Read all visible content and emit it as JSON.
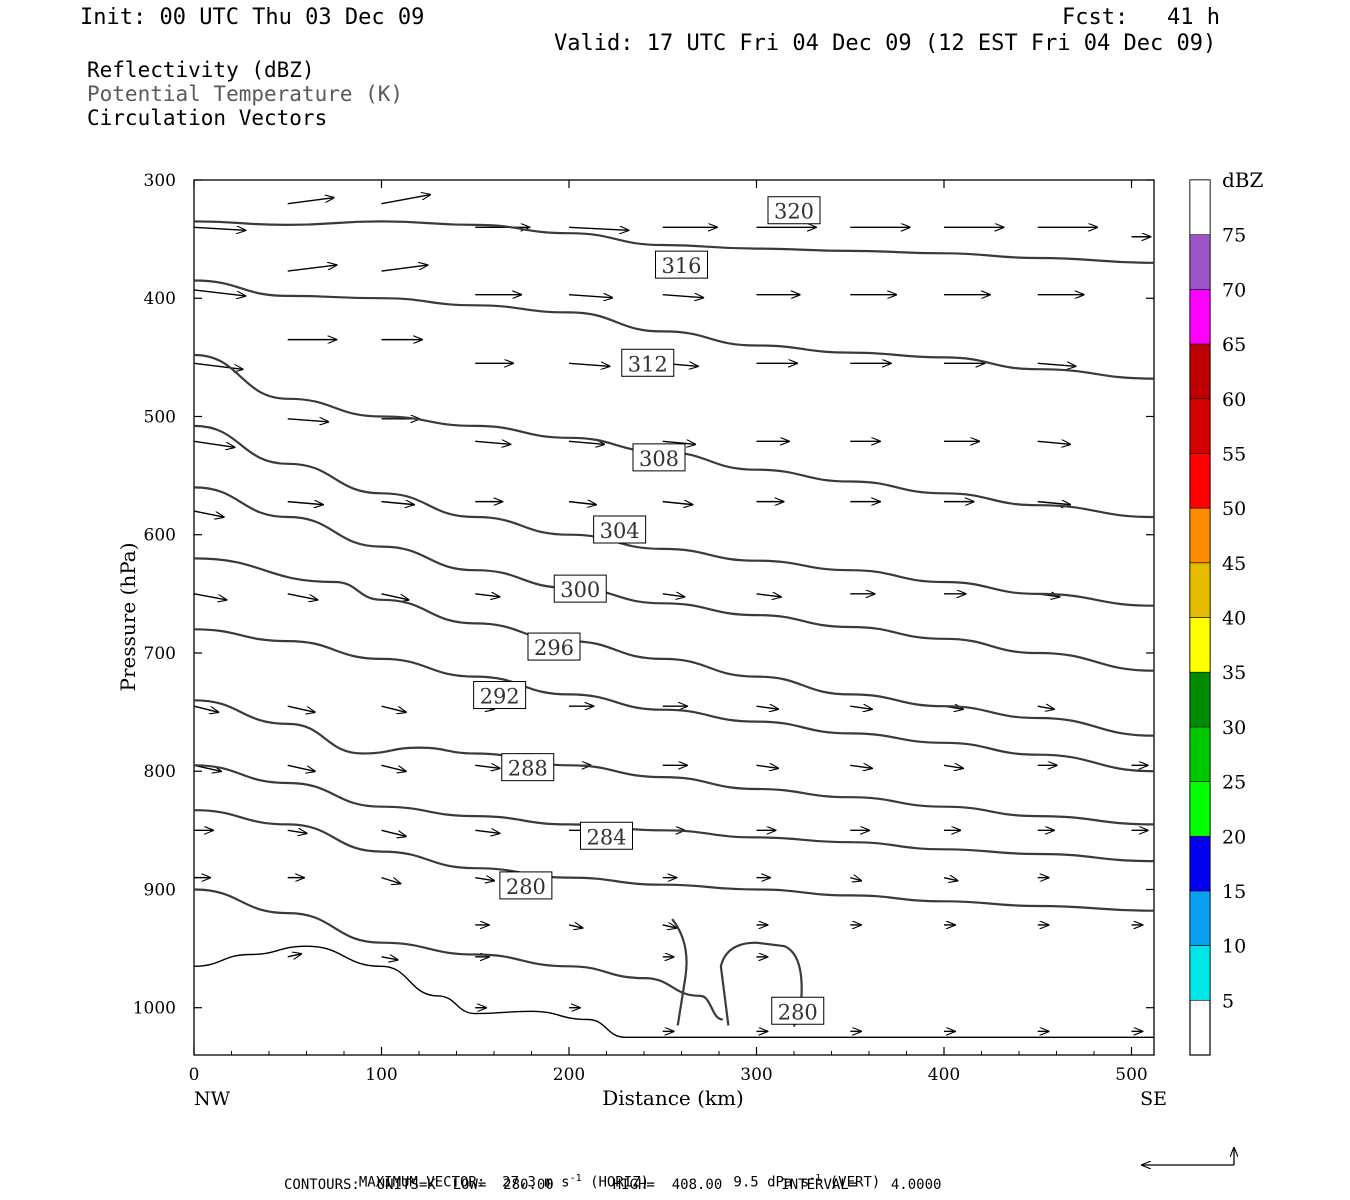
{
  "header": {
    "init": "Init: 00 UTC Thu 03 Dec 09",
    "fcst_label": "Fcst:",
    "fcst_value": "41 h",
    "valid": "Valid: 17 UTC Fri 04 Dec 09 (12 EST Fri 04 Dec 09)"
  },
  "legend": {
    "reflectivity": "Reflectivity (dBZ)",
    "theta": "Potential Temperature (K)",
    "vectors": "Circulation Vectors"
  },
  "colors": {
    "theta": "#3a3a3a",
    "ref_line": "#000000",
    "vector": "#000000"
  },
  "chart_data": {
    "type": "cross-section",
    "xlabel": "Distance (km)",
    "ylabel": "Pressure (hPa)",
    "xlim": [
      0,
      512
    ],
    "ylim": [
      1040,
      300
    ],
    "x_ticks": [
      0,
      100,
      200,
      300,
      400,
      500
    ],
    "y_ticks": [
      300,
      400,
      500,
      600,
      700,
      800,
      900,
      1000
    ],
    "x_end_labels": {
      "left": "NW",
      "right": "SE"
    },
    "theta_contours": [
      {
        "value": 320,
        "label_at": [
          320,
          326
        ],
        "points": [
          [
            0,
            335
          ],
          [
            50,
            338
          ],
          [
            100,
            335
          ],
          [
            150,
            338
          ],
          [
            200,
            345
          ],
          [
            250,
            355
          ],
          [
            300,
            358
          ],
          [
            350,
            360
          ],
          [
            400,
            362
          ],
          [
            450,
            366
          ],
          [
            512,
            370
          ]
        ]
      },
      {
        "value": 316,
        "label_at": [
          260,
          372
        ],
        "points": [
          [
            0,
            385
          ],
          [
            50,
            398
          ],
          [
            100,
            400
          ],
          [
            150,
            406
          ],
          [
            200,
            412
          ],
          [
            250,
            428
          ],
          [
            300,
            440
          ],
          [
            350,
            446
          ],
          [
            400,
            450
          ],
          [
            450,
            460
          ],
          [
            512,
            468
          ]
        ]
      },
      {
        "value": 312,
        "label_at": [
          242,
          455
        ],
        "points": [
          [
            0,
            448
          ],
          [
            50,
            485
          ],
          [
            100,
            500
          ],
          [
            150,
            508
          ],
          [
            200,
            518
          ],
          [
            250,
            530
          ],
          [
            300,
            545
          ],
          [
            350,
            555
          ],
          [
            400,
            565
          ],
          [
            450,
            575
          ],
          [
            512,
            585
          ]
        ]
      },
      {
        "value": 308,
        "label_at": [
          248,
          535
        ],
        "points": [
          [
            0,
            508
          ],
          [
            50,
            540
          ],
          [
            100,
            565
          ],
          [
            150,
            585
          ],
          [
            200,
            600
          ],
          [
            250,
            612
          ],
          [
            300,
            622
          ],
          [
            350,
            630
          ],
          [
            400,
            640
          ],
          [
            450,
            650
          ],
          [
            512,
            660
          ]
        ]
      },
      {
        "value": 304,
        "label_at": [
          227,
          596
        ],
        "points": [
          [
            0,
            560
          ],
          [
            50,
            585
          ],
          [
            100,
            610
          ],
          [
            150,
            630
          ],
          [
            200,
            645
          ],
          [
            250,
            658
          ],
          [
            300,
            668
          ],
          [
            350,
            678
          ],
          [
            400,
            688
          ],
          [
            450,
            700
          ],
          [
            512,
            715
          ]
        ]
      },
      {
        "value": 300,
        "label_at": [
          206,
          646
        ],
        "points": [
          [
            0,
            620
          ],
          [
            75,
            640
          ],
          [
            100,
            655
          ],
          [
            150,
            675
          ],
          [
            200,
            690
          ],
          [
            250,
            705
          ],
          [
            300,
            720
          ],
          [
            350,
            735
          ],
          [
            400,
            745
          ],
          [
            450,
            755
          ],
          [
            512,
            770
          ]
        ]
      },
      {
        "value": 296,
        "label_at": [
          192,
          695
        ],
        "points": [
          [
            0,
            680
          ],
          [
            50,
            690
          ],
          [
            100,
            705
          ],
          [
            150,
            720
          ],
          [
            200,
            735
          ],
          [
            250,
            748
          ],
          [
            300,
            758
          ],
          [
            350,
            768
          ],
          [
            400,
            776
          ],
          [
            450,
            786
          ],
          [
            512,
            800
          ]
        ]
      },
      {
        "value": 292,
        "label_at": [
          163,
          736
        ],
        "points": [
          [
            0,
            740
          ],
          [
            50,
            760
          ],
          [
            90,
            785
          ],
          [
            120,
            780
          ],
          [
            150,
            785
          ],
          [
            200,
            795
          ],
          [
            250,
            805
          ],
          [
            300,
            815
          ],
          [
            350,
            822
          ],
          [
            400,
            830
          ],
          [
            450,
            838
          ],
          [
            512,
            845
          ]
        ]
      },
      {
        "value": 288,
        "label_at": [
          178,
          797
        ],
        "points": [
          [
            0,
            795
          ],
          [
            50,
            810
          ],
          [
            100,
            830
          ],
          [
            150,
            838
          ],
          [
            200,
            845
          ],
          [
            250,
            850
          ],
          [
            300,
            856
          ],
          [
            350,
            860
          ],
          [
            400,
            866
          ],
          [
            450,
            870
          ],
          [
            512,
            876
          ]
        ]
      },
      {
        "value": 284,
        "label_at": [
          220,
          855
        ],
        "points": [
          [
            0,
            833
          ],
          [
            50,
            845
          ],
          [
            100,
            868
          ],
          [
            150,
            882
          ],
          [
            200,
            890
          ],
          [
            250,
            896
          ],
          [
            300,
            900
          ],
          [
            350,
            905
          ],
          [
            400,
            910
          ],
          [
            450,
            914
          ],
          [
            512,
            918
          ]
        ]
      },
      {
        "value": 280,
        "label_at": [
          177,
          897
        ],
        "points": [
          [
            0,
            900
          ],
          [
            50,
            920
          ],
          [
            100,
            945
          ],
          [
            150,
            955
          ],
          [
            200,
            965
          ],
          [
            240,
            975
          ],
          [
            270,
            990
          ],
          [
            282,
            1010
          ]
        ]
      }
    ],
    "theta_280_label_lower": [
      322,
      1003
    ],
    "reflectivity_contour_points": [
      [
        0,
        965
      ],
      [
        30,
        955
      ],
      [
        60,
        948
      ],
      [
        100,
        965
      ],
      [
        130,
        990
      ],
      [
        150,
        1005
      ],
      [
        180,
        1003
      ],
      [
        210,
        1010
      ],
      [
        230,
        1025
      ],
      [
        300,
        1025
      ],
      [
        512,
        1025
      ]
    ],
    "colorbar": {
      "unit": "dBZ",
      "levels": [
        5,
        10,
        15,
        20,
        25,
        30,
        35,
        40,
        45,
        50,
        55,
        60,
        65,
        70,
        75
      ],
      "colors": [
        "#00e6e6",
        "#0aa0f0",
        "#0000f0",
        "#00ff00",
        "#00c800",
        "#008c00",
        "#ffff00",
        "#e6bc00",
        "#ff8c00",
        "#ff0000",
        "#d60000",
        "#bc0000",
        "#ff00ff",
        "#9955c9",
        "#ffffff"
      ]
    },
    "vectors": [
      {
        "rows": [
          320
        ],
        "xs": [
          50,
          100
        ],
        "u": [
          34,
          36
        ],
        "w": [
          -2,
          -3
        ]
      },
      {
        "rows": [
          340
        ],
        "xs": [
          0,
          150,
          200,
          250,
          300,
          350,
          400,
          450
        ],
        "u": [
          38,
          40,
          44,
          40,
          44,
          44,
          44,
          44
        ],
        "w": [
          1,
          0,
          1,
          0,
          0,
          0,
          0,
          0
        ]
      },
      {
        "rows": [
          348
        ],
        "xs": [
          500
        ],
        "u": [
          14
        ],
        "w": [
          0
        ]
      },
      {
        "rows": [
          377
        ],
        "xs": [
          50,
          100
        ],
        "u": [
          36,
          34
        ],
        "w": [
          -2,
          -2
        ]
      },
      {
        "rows": [
          397
        ],
        "xs": [
          150,
          200,
          250,
          300,
          350,
          400,
          450
        ],
        "u": [
          34,
          32,
          30,
          32,
          34,
          34,
          34
        ],
        "w": [
          0,
          1,
          1,
          0,
          0,
          0,
          0
        ]
      },
      {
        "rows": [
          393
        ],
        "xs": [
          0
        ],
        "u": [
          38
        ],
        "w": [
          2
        ]
      },
      {
        "rows": [
          435
        ],
        "xs": [
          50,
          100
        ],
        "u": [
          36,
          30
        ],
        "w": [
          0,
          0
        ]
      },
      {
        "rows": [
          455
        ],
        "xs": [
          0,
          150,
          200,
          250,
          300,
          350,
          400,
          450
        ],
        "u": [
          36,
          28,
          30,
          26,
          30,
          30,
          30,
          28
        ],
        "w": [
          2,
          0,
          1,
          1,
          0,
          0,
          0,
          1
        ]
      },
      {
        "rows": [
          502
        ],
        "xs": [
          50,
          100
        ],
        "u": [
          30,
          28
        ],
        "w": [
          1,
          0
        ]
      },
      {
        "rows": [
          521
        ],
        "xs": [
          0,
          150,
          200,
          250,
          300,
          350,
          400,
          450
        ],
        "u": [
          30,
          26,
          26,
          24,
          24,
          22,
          26,
          24
        ],
        "w": [
          2,
          1,
          1,
          1,
          0,
          0,
          0,
          1
        ]
      },
      {
        "rows": [
          572
        ],
        "xs": [
          50,
          100,
          150,
          200,
          250,
          300,
          350,
          400,
          450
        ],
        "u": [
          26,
          24,
          20,
          20,
          22,
          20,
          22,
          22,
          24
        ],
        "w": [
          1,
          1,
          0,
          1,
          1,
          0,
          0,
          0,
          1
        ]
      },
      {
        "rows": [
          580
        ],
        "xs": [
          0
        ],
        "u": [
          22
        ],
        "w": [
          2
        ]
      },
      {
        "rows": [
          650
        ],
        "xs": [
          0,
          50,
          100,
          150,
          200,
          250,
          300,
          350,
          400,
          450
        ],
        "u": [
          24,
          22,
          20,
          18,
          16,
          16,
          18,
          18,
          16,
          16
        ],
        "w": [
          2,
          2,
          2,
          1,
          0,
          1,
          1,
          0,
          0,
          1
        ]
      },
      {
        "rows": [
          745
        ],
        "xs": [
          0,
          50,
          100,
          150,
          200,
          250,
          300,
          350,
          400,
          450
        ],
        "u": [
          18,
          20,
          18,
          14,
          18,
          18,
          16,
          16,
          14,
          12
        ],
        "w": [
          2,
          2,
          2,
          1,
          0,
          0,
          1,
          1,
          1,
          1
        ]
      },
      {
        "rows": [
          795
        ],
        "xs": [
          0,
          50,
          100,
          150,
          200,
          250,
          300,
          350,
          400,
          450,
          500
        ],
        "u": [
          20,
          20,
          18,
          18,
          16,
          18,
          16,
          16,
          14,
          14,
          12
        ],
        "w": [
          2,
          2,
          2,
          1,
          0,
          0,
          1,
          1,
          1,
          0,
          0
        ]
      },
      {
        "rows": [
          850
        ],
        "xs": [
          0,
          50,
          100,
          150,
          200,
          250,
          300,
          350,
          400,
          450,
          500
        ],
        "u": [
          14,
          14,
          18,
          18,
          16,
          16,
          14,
          14,
          12,
          12,
          12
        ],
        "w": [
          0,
          1,
          2,
          1,
          0,
          0,
          0,
          0,
          0,
          0,
          0
        ]
      },
      {
        "rows": [
          890
        ],
        "xs": [
          0,
          50,
          100,
          150,
          250,
          300,
          350,
          400,
          450
        ],
        "u": [
          12,
          12,
          14,
          14,
          10,
          10,
          8,
          10,
          8
        ],
        "w": [
          0,
          0,
          2,
          1,
          0,
          0,
          1,
          1,
          0
        ]
      },
      {
        "rows": [
          930
        ],
        "xs": [
          150,
          200,
          250,
          300,
          350,
          400,
          450,
          500
        ],
        "u": [
          10,
          10,
          10,
          8,
          8,
          8,
          8,
          8
        ],
        "w": [
          0,
          1,
          1,
          0,
          0,
          0,
          0,
          0
        ]
      },
      {
        "rows": [
          957
        ],
        "xs": [
          50,
          100,
          150,
          250,
          300
        ],
        "u": [
          10,
          12,
          10,
          8,
          8
        ],
        "w": [
          -1,
          1,
          0,
          0,
          0
        ]
      },
      {
        "rows": [
          1000
        ],
        "xs": [
          150,
          200
        ],
        "u": [
          8,
          8
        ],
        "w": [
          0,
          0
        ]
      },
      {
        "rows": [
          1020
        ],
        "xs": [
          250,
          300,
          350,
          400,
          450,
          500
        ],
        "u": [
          8,
          8,
          8,
          8,
          8,
          8
        ],
        "w": [
          0,
          0,
          0,
          0,
          0,
          0
        ]
      }
    ]
  },
  "footer": {
    "max_vector_label": "MAXIMUM VECTOR:",
    "horiz_value": "27.3 m s",
    "horiz_exp": "-1",
    "horiz_unit": "(HORIZ)",
    "vert_value": "9.5 dPa s",
    "vert_exp": "-1",
    "vert_unit": "(VERT)",
    "contours": "CONTOURS:  UNITS=K  LOW=  280.00       HIGH=  408.00       INTERVAL=    4.0000"
  }
}
